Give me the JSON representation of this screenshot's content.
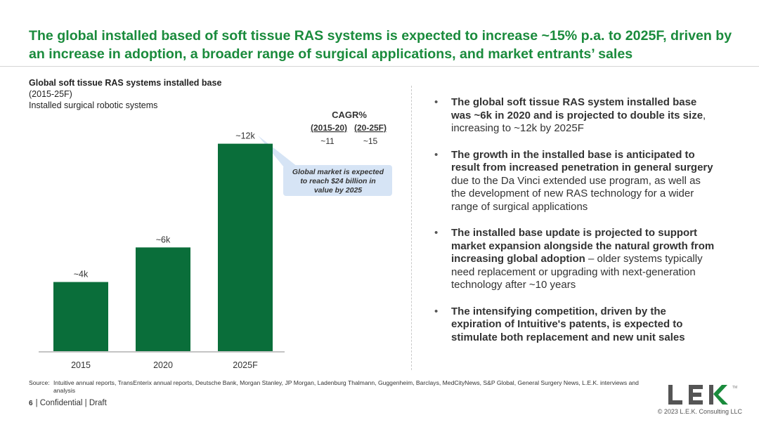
{
  "title": "The global installed based of soft tissue RAS systems is expected to increase ~15% p.a. to 2025F, driven by an increase in adoption, a broader range of surgical applications, and market entrants’ sales",
  "chart_header": {
    "title": "Global soft tissue RAS systems installed base",
    "period": "(2015-25F)",
    "unit": "Installed surgical robotic systems"
  },
  "chart_data": {
    "type": "bar",
    "categories": [
      "2015",
      "2020",
      "2025F"
    ],
    "values": [
      4,
      6,
      12
    ],
    "data_labels": [
      "~4k",
      "~6k",
      "~12k"
    ],
    "unit": "thousand systems",
    "ylim": [
      0,
      13
    ],
    "color": "#0a6e3a",
    "grid": false,
    "cagr": {
      "title": "CAGR%",
      "periods": [
        "(2015-20)",
        "(20-25F)"
      ],
      "values": [
        "~11",
        "~15"
      ]
    },
    "callout": "Global market is expected to reach $24 billion in value by 2025"
  },
  "bullets": [
    {
      "bold": "The global soft tissue RAS system installed base was ~6k in 2020 and is projected to double its size",
      "text": ", increasing to ~12k by 2025F"
    },
    {
      "bold": "The growth in the installed base is anticipated to result from increased penetration in general surgery",
      "text": " due to the Da Vinci extended use program, as well as the development of new RAS technology for a wider range of surgical applications"
    },
    {
      "bold": "The installed base update is projected to support market expansion alongside the natural growth from increasing global adoption",
      "text": " – older systems typically need replacement or upgrading with next-generation technology after ~10 years"
    },
    {
      "bold": "The intensifying competition, driven by the expiration of Intuitive's patents, is expected to stimulate both replacement and new unit sales",
      "text": ""
    }
  ],
  "source": {
    "label": "Source:",
    "text": "Intuitive annual reports, TransEnterix annual reports, Deutsche Bank, Morgan Stanley, JP Morgan, Ladenburg Thalmann, Guggenheim, Barclays, MedCityNews, S&P Global, General Surgery News, L.E.K. interviews and analysis"
  },
  "footer": {
    "page": "6",
    "text": "| Confidential | Draft"
  },
  "logo": {
    "text": "LEK",
    "tm": "TM",
    "color_dark": "#555555",
    "color_accent": "#1a8b3c"
  },
  "copyright": "© 2023 L.E.K. Consulting LLC",
  "colors": {
    "accent": "#1a8b3c",
    "bar": "#0a6e3a",
    "callout_bg": "#d6e4f5"
  }
}
